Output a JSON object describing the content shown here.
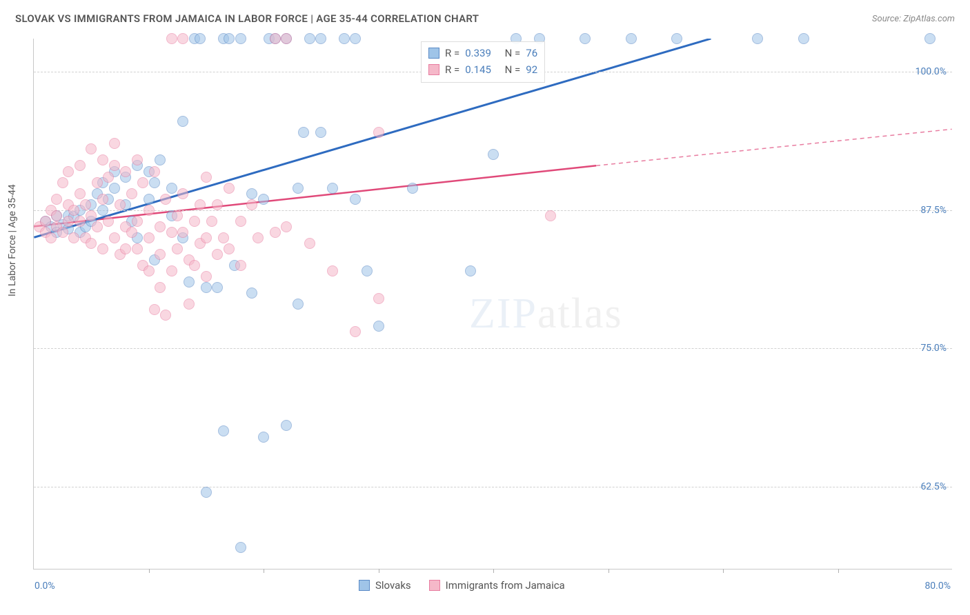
{
  "title": "SLOVAK VS IMMIGRANTS FROM JAMAICA IN LABOR FORCE | AGE 35-44 CORRELATION CHART",
  "source": "Source: ZipAtlas.com",
  "ylabel": "In Labor Force | Age 35-44",
  "watermark_a": "ZIP",
  "watermark_b": "atlas",
  "chart": {
    "type": "scatter",
    "xlim": [
      0,
      80
    ],
    "ylim": [
      55,
      103
    ],
    "ytick_labels": [
      "62.5%",
      "75.0%",
      "87.5%",
      "100.0%"
    ],
    "ytick_values": [
      62.5,
      75.0,
      87.5,
      100.0
    ],
    "xtick_values": [
      10,
      20,
      30,
      40,
      50,
      60,
      70
    ],
    "xtick_label_left": "0.0%",
    "xtick_label_right": "80.0%",
    "background_color": "#ffffff",
    "grid_color": "#d0d0d0",
    "marker_radius": 8,
    "marker_opacity": 0.55,
    "series": [
      {
        "name": "Slovaks",
        "fill": "#9fc4e8",
        "stroke": "#5a8ac6",
        "R": "0.339",
        "N": "76",
        "regression": {
          "x1": 0,
          "y1": 85.0,
          "x2": 59,
          "y2": 103.0,
          "color": "#2e6bc0",
          "width": 3
        },
        "points": [
          [
            1,
            86.5
          ],
          [
            1.5,
            86.0
          ],
          [
            2,
            85.5
          ],
          [
            2,
            87.0
          ],
          [
            2.5,
            86.2
          ],
          [
            3,
            87.0
          ],
          [
            3,
            85.8
          ],
          [
            3.5,
            86.9
          ],
          [
            4,
            85.5
          ],
          [
            4,
            87.5
          ],
          [
            4.5,
            86.0
          ],
          [
            5,
            88.0
          ],
          [
            5,
            86.5
          ],
          [
            5.5,
            89.0
          ],
          [
            6,
            87.5
          ],
          [
            6,
            90.0
          ],
          [
            6.5,
            88.5
          ],
          [
            7,
            89.5
          ],
          [
            7,
            91.0
          ],
          [
            8,
            88.0
          ],
          [
            8,
            90.5
          ],
          [
            8.5,
            86.5
          ],
          [
            9,
            91.5
          ],
          [
            9,
            85.0
          ],
          [
            10,
            91.0
          ],
          [
            10,
            88.5
          ],
          [
            10.5,
            83.0
          ],
          [
            10.5,
            90.0
          ],
          [
            11,
            92.0
          ],
          [
            12,
            87.0
          ],
          [
            12,
            89.5
          ],
          [
            13,
            95.5
          ],
          [
            13,
            85.0
          ],
          [
            13.5,
            81.0
          ],
          [
            14,
            103
          ],
          [
            14.5,
            103
          ],
          [
            15,
            80.5
          ],
          [
            15,
            62.0
          ],
          [
            16,
            80.5
          ],
          [
            16.5,
            103
          ],
          [
            16.5,
            67.5
          ],
          [
            17,
            103
          ],
          [
            17.5,
            82.5
          ],
          [
            18,
            57.0
          ],
          [
            18,
            103
          ],
          [
            19,
            89.0
          ],
          [
            19,
            80.0
          ],
          [
            20,
            67.0
          ],
          [
            20,
            88.5
          ],
          [
            20.5,
            103
          ],
          [
            21,
            103
          ],
          [
            22,
            68.0
          ],
          [
            22,
            103
          ],
          [
            23,
            79.0
          ],
          [
            23,
            89.5
          ],
          [
            23.5,
            94.5
          ],
          [
            24,
            103
          ],
          [
            25,
            103
          ],
          [
            25,
            94.5
          ],
          [
            26,
            89.5
          ],
          [
            27,
            103
          ],
          [
            28,
            88.5
          ],
          [
            28,
            103
          ],
          [
            29,
            82.0
          ],
          [
            30,
            77.0
          ],
          [
            33,
            89.5
          ],
          [
            38,
            82.0
          ],
          [
            40,
            92.5
          ],
          [
            42,
            103
          ],
          [
            44,
            103
          ],
          [
            48,
            103
          ],
          [
            52,
            103
          ],
          [
            56,
            103
          ],
          [
            63,
            103
          ],
          [
            67,
            103
          ],
          [
            78,
            103
          ]
        ]
      },
      {
        "name": "Immigrants from Jamaica",
        "fill": "#f5b8c9",
        "stroke": "#e87ca0",
        "R": "0.145",
        "N": "92",
        "regression_solid": {
          "x1": 0,
          "y1": 86.0,
          "x2": 49,
          "y2": 91.5,
          "color": "#e04979",
          "width": 2.5
        },
        "regression_dashed": {
          "x1": 49,
          "y1": 91.5,
          "x2": 80,
          "y2": 94.8,
          "color": "#e87ca0",
          "width": 1.5
        },
        "points": [
          [
            0.5,
            86.0
          ],
          [
            1,
            86.5
          ],
          [
            1,
            85.5
          ],
          [
            1.5,
            87.5
          ],
          [
            1.5,
            85.0
          ],
          [
            2,
            88.5
          ],
          [
            2,
            86.0
          ],
          [
            2,
            87.0
          ],
          [
            2.5,
            85.5
          ],
          [
            2.5,
            90.0
          ],
          [
            3,
            86.5
          ],
          [
            3,
            88.0
          ],
          [
            3,
            91.0
          ],
          [
            3.5,
            87.5
          ],
          [
            3.5,
            85.0
          ],
          [
            4,
            89.0
          ],
          [
            4,
            86.5
          ],
          [
            4,
            91.5
          ],
          [
            4.5,
            88.0
          ],
          [
            4.5,
            85.0
          ],
          [
            5,
            93.0
          ],
          [
            5,
            87.0
          ],
          [
            5,
            84.5
          ],
          [
            5.5,
            90.0
          ],
          [
            5.5,
            86.0
          ],
          [
            6,
            88.5
          ],
          [
            6,
            92.0
          ],
          [
            6,
            84.0
          ],
          [
            6.5,
            90.5
          ],
          [
            6.5,
            86.5
          ],
          [
            7,
            91.5
          ],
          [
            7,
            85.0
          ],
          [
            7,
            93.5
          ],
          [
            7.5,
            88.0
          ],
          [
            7.5,
            83.5
          ],
          [
            8,
            86.0
          ],
          [
            8,
            91.0
          ],
          [
            8,
            84.0
          ],
          [
            8.5,
            89.0
          ],
          [
            8.5,
            85.5
          ],
          [
            9,
            92.0
          ],
          [
            9,
            86.5
          ],
          [
            9,
            84.0
          ],
          [
            9.5,
            90.0
          ],
          [
            9.5,
            82.5
          ],
          [
            10,
            87.5
          ],
          [
            10,
            85.0
          ],
          [
            10,
            82.0
          ],
          [
            10.5,
            91.0
          ],
          [
            10.5,
            78.5
          ],
          [
            11,
            86.0
          ],
          [
            11,
            83.5
          ],
          [
            11,
            80.5
          ],
          [
            11.5,
            88.5
          ],
          [
            11.5,
            78.0
          ],
          [
            12,
            85.5
          ],
          [
            12,
            82.0
          ],
          [
            12,
            103
          ],
          [
            12.5,
            87.0
          ],
          [
            12.5,
            84.0
          ],
          [
            13,
            89.0
          ],
          [
            13,
            85.5
          ],
          [
            13,
            103
          ],
          [
            13.5,
            83.0
          ],
          [
            13.5,
            79.0
          ],
          [
            14,
            86.5
          ],
          [
            14,
            82.5
          ],
          [
            14.5,
            88.0
          ],
          [
            14.5,
            84.5
          ],
          [
            15,
            85.0
          ],
          [
            15,
            90.5
          ],
          [
            15,
            81.5
          ],
          [
            15.5,
            86.5
          ],
          [
            16,
            88.0
          ],
          [
            16,
            83.5
          ],
          [
            16.5,
            85.0
          ],
          [
            17,
            89.5
          ],
          [
            17,
            84.0
          ],
          [
            18,
            86.5
          ],
          [
            18,
            82.5
          ],
          [
            19,
            88.0
          ],
          [
            19.5,
            85.0
          ],
          [
            21,
            85.5
          ],
          [
            21,
            103
          ],
          [
            22,
            86.0
          ],
          [
            22,
            103
          ],
          [
            24,
            84.5
          ],
          [
            26,
            82.0
          ],
          [
            28,
            76.5
          ],
          [
            30,
            94.5
          ],
          [
            30,
            79.5
          ],
          [
            45,
            87.0
          ]
        ]
      }
    ]
  },
  "top_legend": {
    "r_label": "R =",
    "n_label": "N ="
  },
  "bottom_legend": {
    "label_a": "Slovaks",
    "label_b": "Immigrants from Jamaica"
  }
}
